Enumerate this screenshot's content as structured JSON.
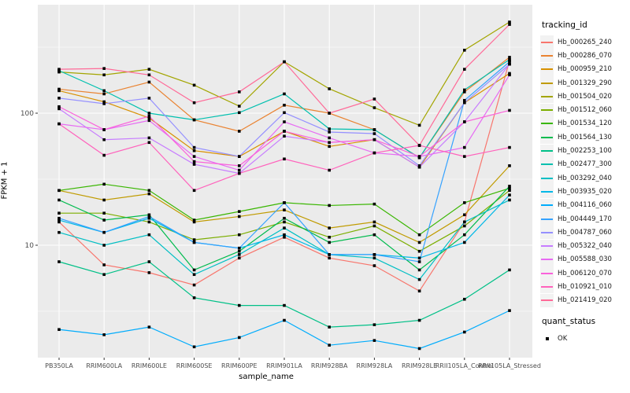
{
  "chart": {
    "x_axis_title": "sample_name",
    "y_axis_title": "FPKM + 1",
    "legend_title": "tracking_id",
    "quant_legend_title": "quant_status",
    "quant_ok_label": "OK",
    "panel_bg_color": "#EBEBEB",
    "gridline_color": "#FFFFFF",
    "tick_label_color": "#4D4D4D",
    "point_color": "#000000"
  },
  "chart_data": {
    "type": "line",
    "title": "",
    "xlabel": "sample_name",
    "ylabel": "FPKM + 1",
    "y_scale": "log10",
    "y_tick_labels": [
      "100",
      "10"
    ],
    "y_tick_values": [
      100,
      10
    ],
    "y_minor_gridline_values": [
      316.2,
      31.62,
      3.162
    ],
    "ylim": [
      1.45,
      640
    ],
    "grid": true,
    "legend_position": "right",
    "marker": "black-square",
    "categories": [
      "PB350LA",
      "RRIM600LA",
      "RRIM600LE",
      "RRIM600SE",
      "RRIM600PE",
      "RRIM901LA",
      "RRIM928BA",
      "RRIM928LA",
      "RRIM928LE",
      "RRII105LA_Control",
      "RRII105LA_Stressed"
    ],
    "series": [
      {
        "name": "Hb_000265_240",
        "color": "#F8766D",
        "values": [
          15,
          7.1,
          6.2,
          5,
          8,
          11.5,
          8,
          7,
          4.5,
          15,
          250
        ]
      },
      {
        "name": "Hb_000286_070",
        "color": "#EA8331",
        "values": [
          152,
          140,
          172,
          89,
          73,
          115,
          100,
          75,
          46,
          145,
          265
        ]
      },
      {
        "name": "Hb_000959_210",
        "color": "#D89000",
        "values": [
          148,
          122,
          92,
          52,
          47,
          73,
          56,
          63,
          39,
          120,
          200
        ]
      },
      {
        "name": "Hb_001329_290",
        "color": "#C09B00",
        "values": [
          26,
          22,
          24.5,
          15,
          16.5,
          18.5,
          13.5,
          15,
          10.5,
          17,
          40
        ]
      },
      {
        "name": "Hb_001504_020",
        "color": "#A3A500",
        "values": [
          205,
          195,
          215,
          163,
          113,
          245,
          153,
          110,
          81,
          300,
          490
        ]
      },
      {
        "name": "Hb_001512_060",
        "color": "#7CAE00",
        "values": [
          17.5,
          17.5,
          15,
          11,
          12,
          15,
          11.5,
          14,
          9,
          14,
          26
        ]
      },
      {
        "name": "Hb_001534_120",
        "color": "#39B600",
        "values": [
          26,
          29,
          26,
          15.5,
          18,
          21,
          20,
          20.5,
          12,
          21,
          27
        ]
      },
      {
        "name": "Hb_001564_130",
        "color": "#00BB4E",
        "values": [
          22,
          15.5,
          17,
          6.5,
          9,
          16,
          10.5,
          12,
          6.5,
          12,
          28
        ]
      },
      {
        "name": "Hb_002253_100",
        "color": "#00C087",
        "values": [
          7.5,
          6,
          7.5,
          4,
          3.5,
          3.5,
          2.4,
          2.5,
          2.7,
          3.9,
          6.5
        ]
      },
      {
        "name": "Hb_002477_300",
        "color": "#00C0AF",
        "values": [
          210,
          148,
          100,
          89,
          101,
          140,
          76,
          75,
          46,
          150,
          255
        ]
      },
      {
        "name": "Hb_003292_040",
        "color": "#00BFC4",
        "values": [
          12.5,
          10,
          12,
          6,
          8.5,
          13.5,
          8.5,
          8,
          5.5,
          15,
          22
        ]
      },
      {
        "name": "Hb_003935_020",
        "color": "#00B8E7",
        "values": [
          15.5,
          12.5,
          16,
          10.5,
          9.5,
          12,
          8.5,
          8.5,
          8,
          10.5,
          24
        ]
      },
      {
        "name": "Hb_004116_060",
        "color": "#00ACFC",
        "values": [
          2.3,
          2.1,
          2.4,
          1.7,
          2.0,
          2.7,
          1.75,
          1.9,
          1.65,
          2.2,
          3.2
        ]
      },
      {
        "name": "Hb_004449_170",
        "color": "#35A2FF",
        "values": [
          16,
          12.5,
          16.5,
          10.5,
          9.5,
          21,
          8.5,
          8.5,
          7.5,
          125,
          245
        ]
      },
      {
        "name": "Hb_004787_060",
        "color": "#9590FF",
        "values": [
          130,
          118,
          130,
          55,
          47,
          101,
          72,
          70,
          40,
          120,
          235
        ]
      },
      {
        "name": "Hb_005322_040",
        "color": "#C77CFF",
        "values": [
          108,
          63,
          65,
          41,
          35,
          67,
          60,
          63,
          39,
          86,
          235
        ]
      },
      {
        "name": "Hb_005588_030",
        "color": "#E76BF3",
        "values": [
          83,
          75,
          88,
          47,
          37,
          86,
          65,
          50,
          47,
          55,
          195
        ]
      },
      {
        "name": "Hb_006120_070",
        "color": "#FA62DB",
        "values": [
          112,
          75,
          95,
          43,
          40,
          73,
          60,
          63,
          47,
          86,
          105
        ]
      },
      {
        "name": "Hb_010921_010",
        "color": "#FF62BC",
        "values": [
          83,
          48,
          60,
          26,
          35,
          45,
          37,
          50,
          57,
          47,
          55
        ]
      },
      {
        "name": "Hb_021419_020",
        "color": "#FF6A98",
        "values": [
          215,
          218,
          195,
          120,
          145,
          245,
          100,
          128,
          57,
          215,
          470
        ]
      }
    ],
    "quant_status": {
      "label": "OK",
      "marker": "black-square"
    }
  }
}
